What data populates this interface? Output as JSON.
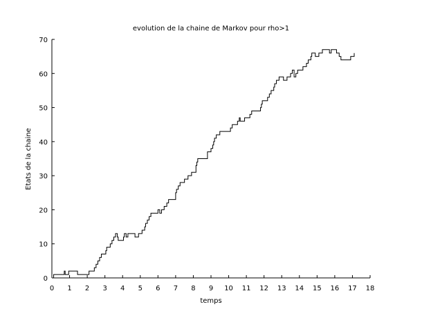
{
  "chart_data": {
    "type": "line",
    "drawstyle": "steps-post",
    "title": "evolution de la chaine de Markov pour rho>1",
    "xlabel": "temps",
    "ylabel": "Etats de la chaine",
    "color": "#000000",
    "x": [
      0,
      0.1,
      0.7,
      0.75,
      0.95,
      1.45,
      2.1,
      2.4,
      2.5,
      2.6,
      2.7,
      2.8,
      3.05,
      3.1,
      3.3,
      3.4,
      3.5,
      3.6,
      3.7,
      3.75,
      4.05,
      4.1,
      4.2,
      4.3,
      4.7,
      4.9,
      5.1,
      5.25,
      5.3,
      5.4,
      5.5,
      5.6,
      6.0,
      6.1,
      6.2,
      6.35,
      6.5,
      6.6,
      7.0,
      7.05,
      7.15,
      7.25,
      7.5,
      7.7,
      7.9,
      8.15,
      8.2,
      8.25,
      8.8,
      9.0,
      9.1,
      9.15,
      9.2,
      9.3,
      9.5,
      10.1,
      10.2,
      10.5,
      10.6,
      10.65,
      10.9,
      11.2,
      11.3,
      11.8,
      11.85,
      11.9,
      12.2,
      12.3,
      12.4,
      12.55,
      12.6,
      12.7,
      12.85,
      13.1,
      13.3,
      13.5,
      13.6,
      13.7,
      13.8,
      13.9,
      14.2,
      14.4,
      14.5,
      14.65,
      14.7,
      14.9,
      15.1,
      15.3,
      15.7,
      15.8,
      16.1,
      16.25,
      16.35,
      16.9,
      17.1
    ],
    "values": [
      0,
      1,
      2,
      1,
      2,
      1,
      2,
      3,
      4,
      5,
      6,
      7,
      8,
      9,
      10,
      11,
      12,
      13,
      12,
      11,
      12,
      13,
      12,
      13,
      12,
      13,
      14,
      15,
      16,
      17,
      18,
      19,
      20,
      19,
      20,
      21,
      22,
      23,
      25,
      26,
      27,
      28,
      29,
      30,
      31,
      33,
      34,
      35,
      37,
      38,
      39,
      40,
      41,
      42,
      43,
      44,
      45,
      46,
      47,
      46,
      47,
      48,
      49,
      50,
      51,
      52,
      53,
      54,
      55,
      56,
      57,
      58,
      59,
      58,
      59,
      60,
      61,
      59,
      60,
      61,
      62,
      63,
      64,
      65,
      66,
      65,
      66,
      67,
      66,
      67,
      66,
      65,
      64,
      65,
      66
    ],
    "xlim": [
      0,
      18
    ],
    "ylim": [
      0,
      70
    ],
    "xticks": [
      0,
      1,
      2,
      3,
      4,
      5,
      6,
      7,
      8,
      9,
      10,
      11,
      12,
      13,
      14,
      15,
      16,
      17,
      18
    ],
    "yticks": [
      0,
      10,
      20,
      30,
      40,
      50,
      60,
      70
    ]
  }
}
